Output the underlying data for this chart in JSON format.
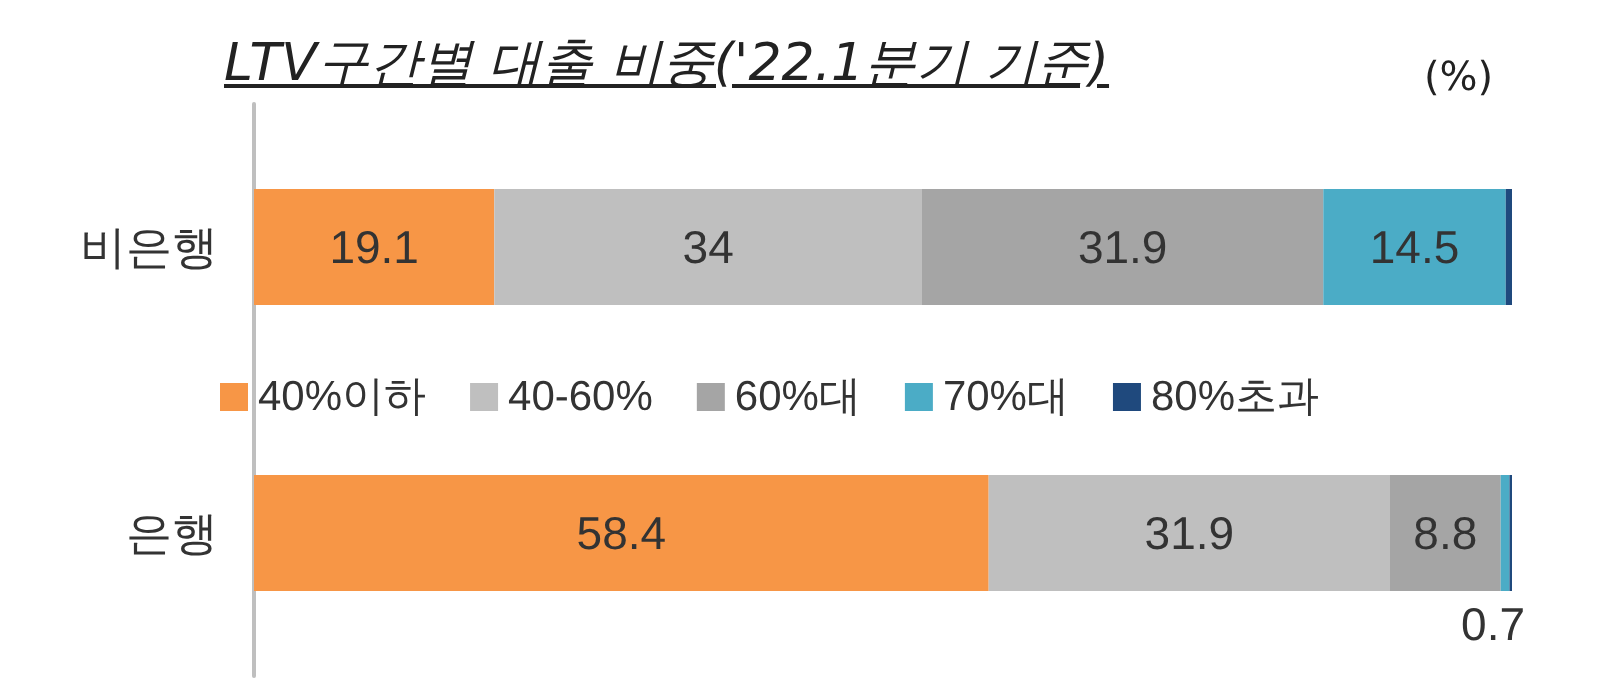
{
  "chart_data": {
    "type": "bar",
    "orientation": "horizontal",
    "stacked": true,
    "xlim": [
      0,
      100
    ],
    "tick_labels": "y",
    "title": "LTV구간별 대출 비중('22.1분기 기준)",
    "annotations": [
      "(%)"
    ],
    "categories": [
      "비은행",
      "은행"
    ],
    "legend": "center",
    "series": [
      {
        "name": "40%이하",
        "color": "#f79646",
        "values": [
          19.1,
          58.4
        ],
        "value_labels": [
          "19.1",
          "58.4"
        ]
      },
      {
        "name": "40-60%",
        "color": "#bfbfbf",
        "values": [
          34,
          31.9
        ],
        "value_labels": [
          "34",
          "31.9"
        ]
      },
      {
        "name": "60%대",
        "color": "#a5a5a5",
        "values": [
          31.9,
          8.8
        ],
        "value_labels": [
          "31.9",
          "8.8"
        ]
      },
      {
        "name": "70%대",
        "color": "#4bacc6",
        "values": [
          14.5,
          0.7
        ],
        "value_labels": [
          "14.5",
          "0.7"
        ]
      },
      {
        "name": "80%초과",
        "color": "#1f497d",
        "values": [
          0.5,
          0.2
        ],
        "value_labels": [
          null,
          null
        ]
      }
    ]
  }
}
